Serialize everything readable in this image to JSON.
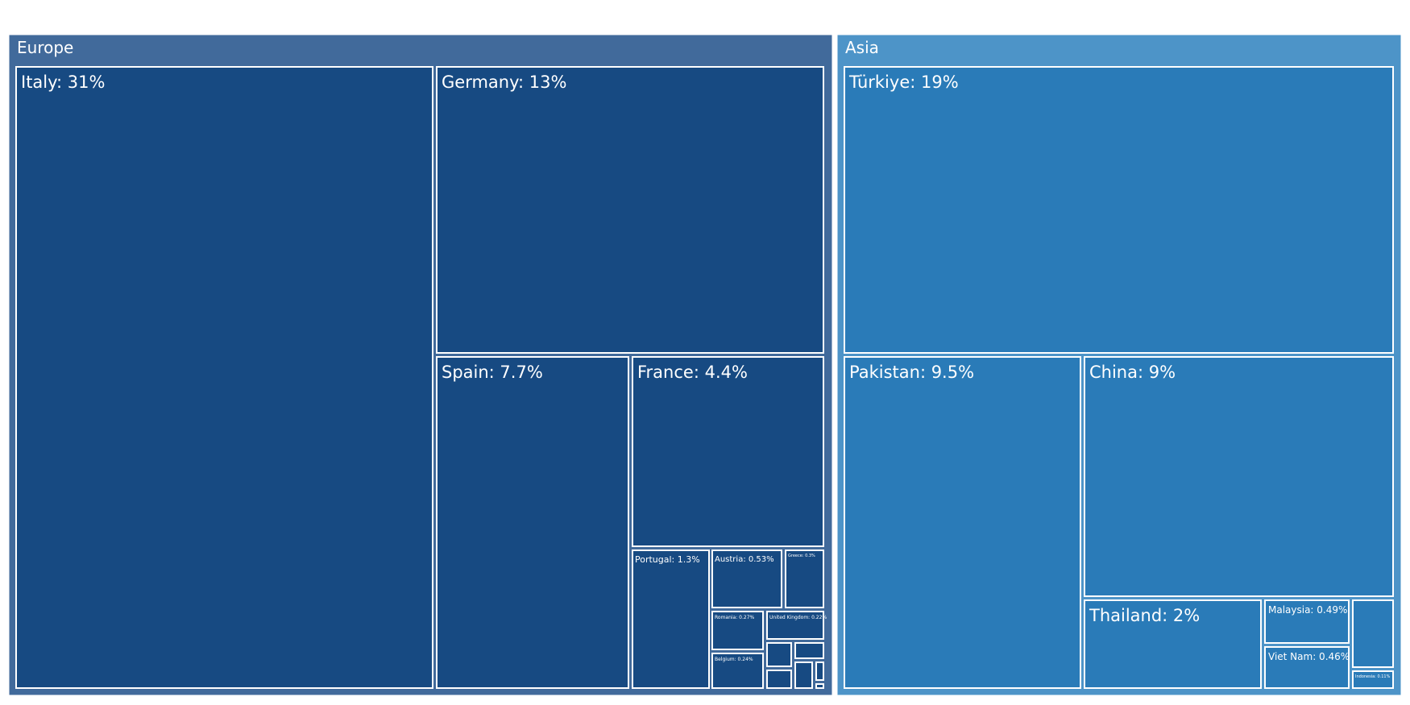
{
  "chart_data": {
    "type": "treemap",
    "title": "",
    "groups": [
      {
        "name": "Europe",
        "color": "#416a9b",
        "leaf_color": "#174a82",
        "leaves": [
          {
            "label": "Italy: 31%",
            "value": 31
          },
          {
            "label": "Germany: 13%",
            "value": 13
          },
          {
            "label": "Spain: 7.7%",
            "value": 7.7
          },
          {
            "label": "France: 4.4%",
            "value": 4.4
          },
          {
            "label": "Portugal: 1.3%",
            "value": 1.3
          },
          {
            "label": "Austria: 0.53%",
            "value": 0.53
          },
          {
            "label": "Greece: 0.3%",
            "value": 0.3
          },
          {
            "label": "Romania: 0.27%",
            "value": 0.27
          },
          {
            "label": "United Kingdom: 0.22%",
            "value": 0.22
          },
          {
            "label": "Belgium: 0.24%",
            "value": 0.24
          },
          {
            "label": "",
            "value": 0.08
          },
          {
            "label": "",
            "value": 0.07
          },
          {
            "label": "",
            "value": 0.06
          },
          {
            "label": "",
            "value": 0.05
          },
          {
            "label": "",
            "value": 0.04
          },
          {
            "label": "",
            "value": 0.01
          }
        ]
      },
      {
        "name": "Asia",
        "color": "#4d94c8",
        "leaf_color": "#2a7bb8",
        "leaves": [
          {
            "label": "Türkiye: 19%",
            "value": 19
          },
          {
            "label": "Pakistan: 9.5%",
            "value": 9.5
          },
          {
            "label": "China: 9%",
            "value": 9
          },
          {
            "label": "Thailand: 2%",
            "value": 2
          },
          {
            "label": "Malaysia: 0.49%",
            "value": 0.49
          },
          {
            "label": "Viet Nam: 0.46%",
            "value": 0.46
          },
          {
            "label": "",
            "value": 0.3
          },
          {
            "label": "Indonesia: 0.11%",
            "value": 0.11
          }
        ]
      }
    ]
  }
}
